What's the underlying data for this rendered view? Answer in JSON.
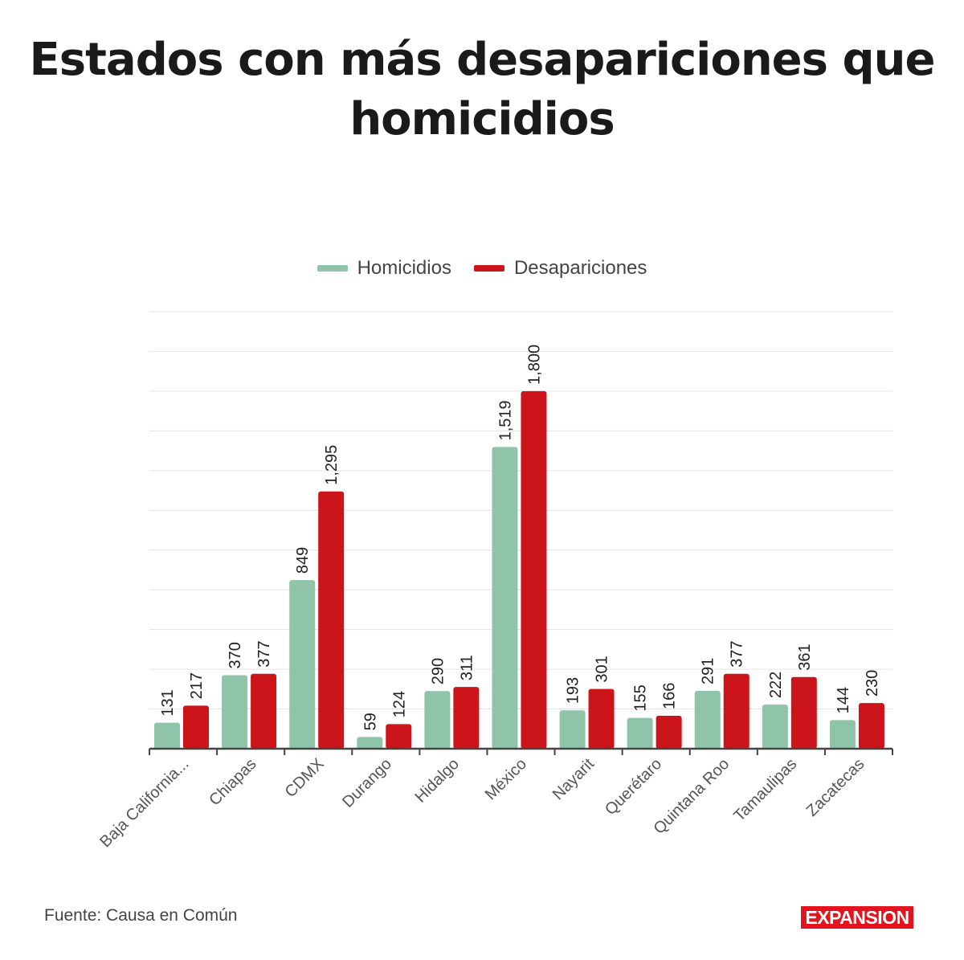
{
  "chart_data": {
    "type": "bar",
    "title": "Estados con más desapariciones que homicidios",
    "categories": [
      "Baja California...",
      "Chiapas",
      "CDMX",
      "Durango",
      "Hidalgo",
      "México",
      "Nayarit",
      "Querétaro",
      "Quintana Roo",
      "Tamaulipas",
      "Zacatecas"
    ],
    "series": [
      {
        "name": "Homicidios",
        "color": "#8fc4aa",
        "values": [
          131,
          370,
          849,
          59,
          290,
          1519,
          193,
          155,
          291,
          222,
          144
        ],
        "labels": [
          "131",
          "370",
          "849",
          "59",
          "290",
          "1,519",
          "193",
          "155",
          "291",
          "222",
          "144"
        ]
      },
      {
        "name": "Desapariciones",
        "color": "#cc141b",
        "values": [
          217,
          377,
          1295,
          124,
          311,
          1800,
          301,
          166,
          377,
          361,
          230
        ],
        "labels": [
          "217",
          "377",
          "1,295",
          "124",
          "311",
          "1,800",
          "301",
          "166",
          "377",
          "361",
          "230"
        ]
      }
    ],
    "ylim": [
      0,
      2200
    ],
    "grid": true,
    "legend": "top"
  },
  "footer": {
    "source": "Fuente: Causa en Común",
    "logo": "EXPANSION"
  }
}
